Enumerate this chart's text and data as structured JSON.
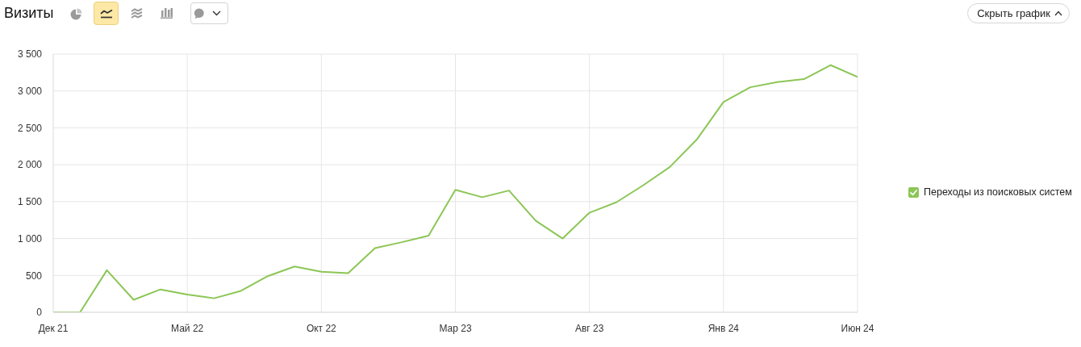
{
  "chart_data": {
    "type": "line",
    "title": "Визиты",
    "annotations": [
      "Скрыть график"
    ],
    "x": [
      "2021-12",
      "2022-01",
      "2022-02",
      "2022-03",
      "2022-04",
      "2022-05",
      "2022-06",
      "2022-07",
      "2022-08",
      "2022-09",
      "2022-10",
      "2022-11",
      "2022-12",
      "2023-01",
      "2023-02",
      "2023-03",
      "2023-04",
      "2023-05",
      "2023-06",
      "2023-07",
      "2023-08",
      "2023-09",
      "2023-10",
      "2023-11",
      "2023-12",
      "2024-01",
      "2024-02",
      "2024-03",
      "2024-04",
      "2024-05",
      "2024-06"
    ],
    "series": [
      {
        "name": "Переходы из поисковых систем",
        "color": "#8cc656",
        "values": [
          0,
          0,
          570,
          170,
          310,
          240,
          190,
          290,
          490,
          620,
          550,
          530,
          870,
          950,
          1040,
          1660,
          1560,
          1650,
          1240,
          1000,
          1350,
          1490,
          1720,
          1970,
          2340,
          2850,
          3050,
          3120,
          3160,
          3350,
          3190
        ]
      }
    ],
    "xlim": [
      "2021-12",
      "2024-06"
    ],
    "xticks": [
      {
        "value": "2021-12",
        "label": "Дек 21"
      },
      {
        "value": "2022-05",
        "label": "Май 22"
      },
      {
        "value": "2022-10",
        "label": "Окт 22"
      },
      {
        "value": "2023-03",
        "label": "Мар 23"
      },
      {
        "value": "2023-08",
        "label": "Авг 23"
      },
      {
        "value": "2024-01",
        "label": "Янв 24"
      },
      {
        "value": "2024-06",
        "label": "Июн 24"
      }
    ],
    "ylim": [
      0,
      3500
    ],
    "yticks": [
      0,
      500,
      {
        "value": 1000,
        "label": "1 000"
      },
      {
        "value": 1500,
        "label": "1 500"
      },
      {
        "value": 2000,
        "label": "2 000"
      },
      {
        "value": 2500,
        "label": "2 500"
      },
      {
        "value": 3000,
        "label": "3 000"
      },
      {
        "value": 3500,
        "label": "3 500"
      }
    ],
    "grid": true,
    "legend": "right"
  }
}
